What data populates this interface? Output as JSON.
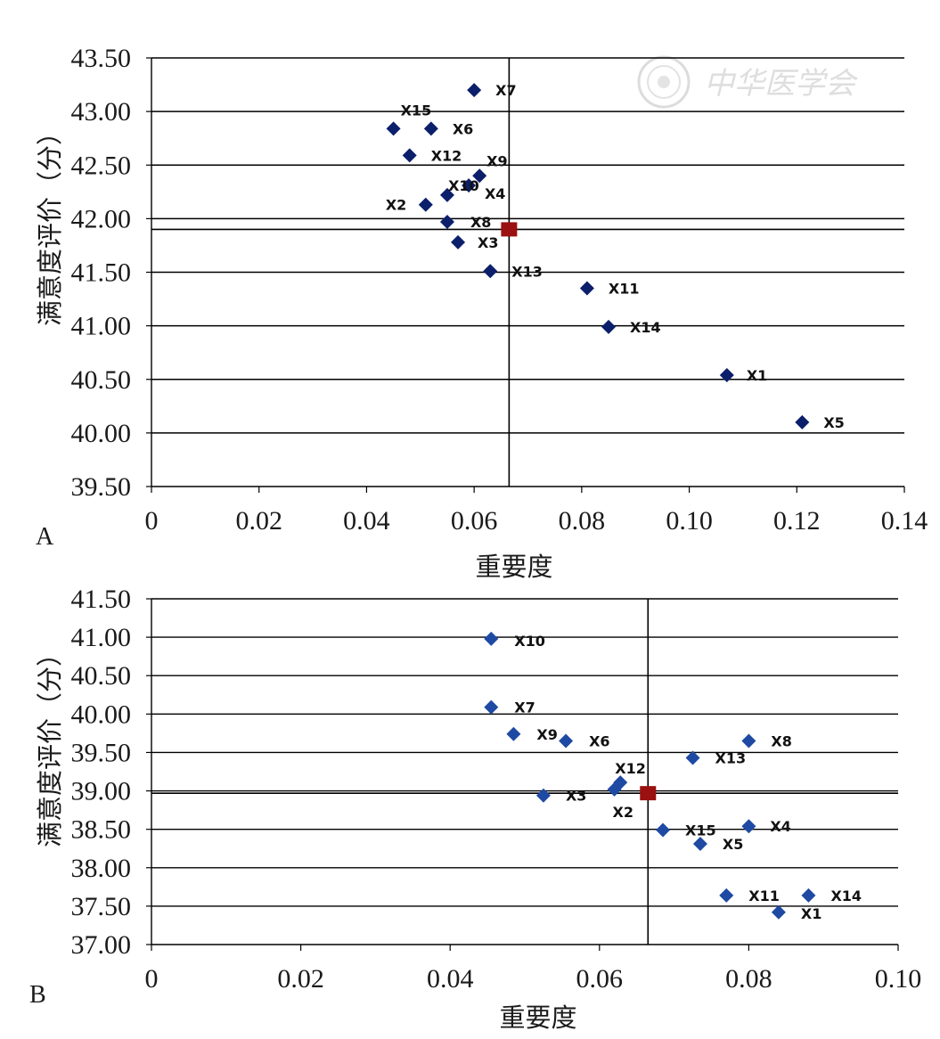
{
  "watermark": {
    "text": "中华医学会",
    "seal_icon": "seal-icon"
  },
  "colors": {
    "point_a": "#0b1f6b",
    "point_b": "#1f4aa3",
    "mean_marker": "#9b1010"
  },
  "chart_data": [
    {
      "type": "scatter",
      "panel": "A",
      "xlabel": "重要度",
      "ylabel": "满意度评价（分）",
      "xlim": [
        0,
        0.14
      ],
      "ylim": [
        39.5,
        43.5
      ],
      "xticks": [
        "0",
        "0.02",
        "0.04",
        "0.06",
        "0.08",
        "0.10",
        "0.12",
        "0.14"
      ],
      "yticks": [
        "39.50",
        "40.00",
        "40.50",
        "41.00",
        "41.50",
        "42.00",
        "42.50",
        "43.00",
        "43.50"
      ],
      "grid": "horizontal",
      "mean_point": {
        "x": 0.0665,
        "y": 41.9
      },
      "points": [
        {
          "label": "X1",
          "x": 0.107,
          "y": 40.54
        },
        {
          "label": "X2",
          "x": 0.051,
          "y": 42.13
        },
        {
          "label": "X3",
          "x": 0.057,
          "y": 41.78
        },
        {
          "label": "X4",
          "x": 0.055,
          "y": 42.22
        },
        {
          "label": "X5",
          "x": 0.121,
          "y": 40.1
        },
        {
          "label": "X6",
          "x": 0.052,
          "y": 42.84
        },
        {
          "label": "X7",
          "x": 0.06,
          "y": 43.2
        },
        {
          "label": "X8",
          "x": 0.055,
          "y": 41.97
        },
        {
          "label": "X9",
          "x": 0.061,
          "y": 42.4
        },
        {
          "label": "X10",
          "x": 0.059,
          "y": 42.31
        },
        {
          "label": "X11",
          "x": 0.081,
          "y": 41.35
        },
        {
          "label": "X12",
          "x": 0.048,
          "y": 42.59
        },
        {
          "label": "X13",
          "x": 0.063,
          "y": 41.51
        },
        {
          "label": "X14",
          "x": 0.085,
          "y": 40.99
        },
        {
          "label": "X15",
          "x": 0.045,
          "y": 42.84
        }
      ]
    },
    {
      "type": "scatter",
      "panel": "B",
      "xlabel": "重要度",
      "ylabel": "满意度评价（分）",
      "xlim": [
        0,
        0.1
      ],
      "ylim": [
        37.0,
        41.5
      ],
      "xticks": [
        "0",
        "0.02",
        "0.04",
        "0.06",
        "0.08",
        "0.10"
      ],
      "yticks": [
        "37.00",
        "37.50",
        "38.00",
        "38.50",
        "39.00",
        "39.50",
        "40.00",
        "40.50",
        "41.00",
        "41.50"
      ],
      "grid": "horizontal",
      "mean_point": {
        "x": 0.0665,
        "y": 38.97
      },
      "points": [
        {
          "label": "X1",
          "x": 0.084,
          "y": 37.42
        },
        {
          "label": "X2",
          "x": 0.062,
          "y": 39.02
        },
        {
          "label": "X3",
          "x": 0.0525,
          "y": 38.94
        },
        {
          "label": "X4",
          "x": 0.08,
          "y": 38.54
        },
        {
          "label": "X5",
          "x": 0.0735,
          "y": 38.31
        },
        {
          "label": "X6",
          "x": 0.0555,
          "y": 39.65
        },
        {
          "label": "X7",
          "x": 0.0455,
          "y": 40.09
        },
        {
          "label": "X8",
          "x": 0.08,
          "y": 39.65
        },
        {
          "label": "X9",
          "x": 0.0485,
          "y": 39.74
        },
        {
          "label": "X10",
          "x": 0.0455,
          "y": 40.98
        },
        {
          "label": "X11",
          "x": 0.077,
          "y": 37.64
        },
        {
          "label": "X12",
          "x": 0.0628,
          "y": 39.11
        },
        {
          "label": "X13",
          "x": 0.0725,
          "y": 39.43
        },
        {
          "label": "X14",
          "x": 0.088,
          "y": 37.64
        },
        {
          "label": "X15",
          "x": 0.0685,
          "y": 38.49
        }
      ]
    }
  ]
}
